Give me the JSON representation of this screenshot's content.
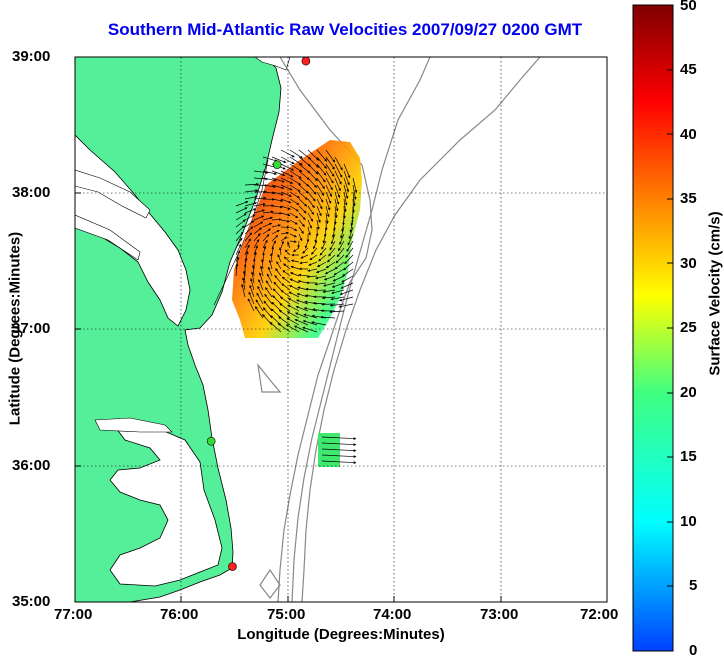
{
  "title": "Southern Mid-Atlantic Raw Velocities 2007/09/27 0200 GMT",
  "xlabel": "Longitude (Degrees:Minutes)",
  "ylabel": "Latitude (Degrees:Minutes)",
  "colorbar": {
    "label": "Surface Velocity (cm/s)",
    "ticks": [
      "50",
      "45",
      "40",
      "35",
      "30",
      "25",
      "20",
      "15",
      "10",
      "5",
      "0"
    ],
    "range": [
      0,
      50
    ],
    "colors": [
      "#0040ff",
      "#00ffff",
      "#40ff80",
      "#ffff00",
      "#ff8000",
      "#ff0000",
      "#800000"
    ]
  },
  "axes": {
    "xticks": [
      "77:00",
      "76:00",
      "75:00",
      "74:00",
      "73:00",
      "72:00"
    ],
    "yticks": [
      "39:00",
      "38:00",
      "37:00",
      "36:00",
      "35:00"
    ],
    "xlim": [
      -77.0,
      -72.0
    ],
    "ylim": [
      35.0,
      39.0
    ],
    "grid": "dotted"
  },
  "colors": {
    "land": "#55ee99",
    "title": "#0000ee",
    "bathymetry": "#888888"
  },
  "stations": [
    {
      "lon": -74.83,
      "lat": 38.97,
      "color": "#ff2020"
    },
    {
      "lon": -75.1,
      "lat": 38.21,
      "color": "#33dd33"
    },
    {
      "lon": -75.72,
      "lat": 36.18,
      "color": "#33dd33"
    },
    {
      "lon": -75.52,
      "lat": 35.26,
      "color": "#ff2020"
    }
  ]
}
